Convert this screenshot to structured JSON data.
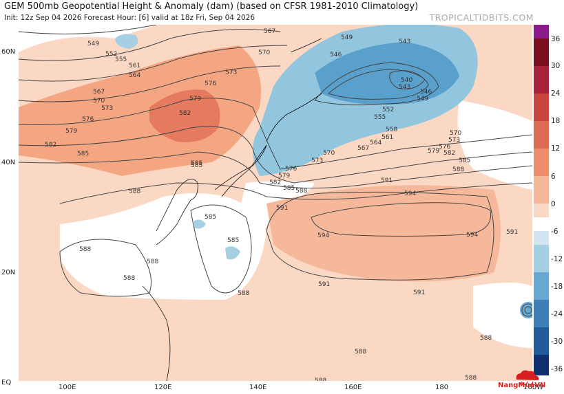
{
  "header": {
    "title": "GEM 500mb Geopotential Height & Anomaly (dam) (based on CFSR 1981-2010 Climatology)",
    "subtitle": "Init: 12z Sep 04 2026   Forecast Hour: [6]   valid at 18z Fri, Sep 04 2026",
    "brand": "TROPICALTIDBITS.COM"
  },
  "axes": {
    "lat_labels": [
      "60N",
      "40N",
      "20N",
      "EQ"
    ],
    "lon_labels": [
      "100E",
      "120E",
      "140E",
      "160E",
      "180",
      "160W"
    ]
  },
  "colorbar": {
    "labels": [
      "36",
      "30",
      "24",
      "18",
      "12",
      "6",
      "0",
      "-6",
      "-12",
      "-18",
      "-24",
      "-30",
      "-36"
    ]
  },
  "contours": {
    "labels": [
      "549",
      "552",
      "555",
      "558",
      "561",
      "564",
      "567",
      "570",
      "573",
      "576",
      "579",
      "582",
      "585",
      "588",
      "591",
      "594",
      "546",
      "543",
      "540"
    ]
  },
  "watermark": {
    "text": "NangMuaVN"
  },
  "colors": {
    "positive_anomaly": "#f4a582",
    "strong_positive": "#d6604d",
    "negative_anomaly": "#92c5de",
    "strong_negative": "#4393c3",
    "neutral": "#ffffff"
  }
}
